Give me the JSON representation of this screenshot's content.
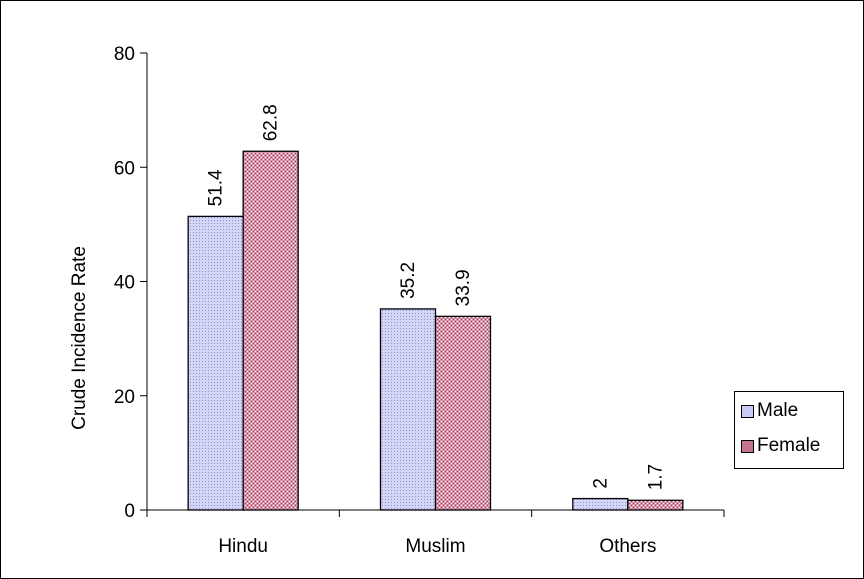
{
  "chart_data": {
    "type": "bar",
    "categories": [
      "Hindu",
      "Muslim",
      "Others"
    ],
    "series": [
      {
        "name": "Male",
        "values": [
          51.4,
          35.2,
          2
        ],
        "labels": [
          "51.4",
          "35.2",
          "2"
        ],
        "color": "#c8ccf4"
      },
      {
        "name": "Female",
        "values": [
          62.8,
          33.9,
          1.7
        ],
        "labels": [
          "62.8",
          "33.9",
          "1.7"
        ],
        "color": "#c4758d"
      }
    ],
    "ylabel": "Crude Incidence Rate",
    "xlabel": "",
    "ylim": [
      0,
      80
    ],
    "yticks": [
      0,
      20,
      40,
      60,
      80
    ],
    "grid": false,
    "legend": "right"
  }
}
